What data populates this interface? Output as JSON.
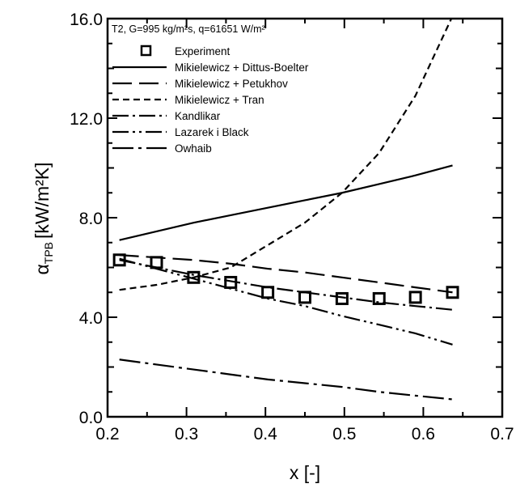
{
  "chart_data": {
    "type": "line",
    "title": "",
    "legend_title": "T2, G=995 kg/m²s, q=61651 W/m²",
    "xlabel": "x [-]",
    "ylabel_main": "α",
    "ylabel_sub": "TPB",
    "ylabel_units": "[kW/m²K]",
    "xlim": [
      0.2,
      0.7
    ],
    "ylim": [
      0.0,
      16.0
    ],
    "x_ticks": [
      "0.2",
      "0.3",
      "0.4",
      "0.5",
      "0.6",
      "0.7"
    ],
    "y_ticks": [
      "0.0",
      "4.0",
      "8.0",
      "12.0",
      "16.0"
    ],
    "grid": false,
    "legend_position": "top-left",
    "series": [
      {
        "name": "Experiment",
        "style": "square-marker",
        "x": [
          0.215,
          0.262,
          0.309,
          0.356,
          0.403,
          0.45,
          0.497,
          0.544,
          0.59,
          0.637
        ],
        "y": [
          6.3,
          6.2,
          5.6,
          5.4,
          5.0,
          4.8,
          4.75,
          4.75,
          4.8,
          5.0
        ]
      },
      {
        "name": "Mikielewicz + Dittus-Boelter",
        "style": "solid",
        "x": [
          0.215,
          0.262,
          0.309,
          0.356,
          0.403,
          0.45,
          0.497,
          0.544,
          0.59,
          0.637
        ],
        "y": [
          7.1,
          7.45,
          7.8,
          8.1,
          8.4,
          8.7,
          9.0,
          9.35,
          9.7,
          10.1
        ]
      },
      {
        "name": "Mikielewicz + Petukhov",
        "style": "long-dash",
        "x": [
          0.215,
          0.262,
          0.309,
          0.356,
          0.403,
          0.45,
          0.497,
          0.544,
          0.59,
          0.637
        ],
        "y": [
          6.5,
          6.4,
          6.3,
          6.15,
          5.95,
          5.8,
          5.6,
          5.4,
          5.2,
          5.0
        ]
      },
      {
        "name": "Mikielewicz + Tran",
        "style": "short-dash",
        "x": [
          0.215,
          0.262,
          0.309,
          0.356,
          0.403,
          0.45,
          0.497,
          0.544,
          0.59,
          0.637
        ],
        "y": [
          5.1,
          5.3,
          5.6,
          6.0,
          6.9,
          7.8,
          9.0,
          10.6,
          12.9,
          16.1
        ]
      },
      {
        "name": "Kandlikar",
        "style": "dash-dot",
        "x": [
          0.215,
          0.262,
          0.309,
          0.356,
          0.403,
          0.45,
          0.497,
          0.544,
          0.59,
          0.637
        ],
        "y": [
          6.3,
          6.0,
          5.7,
          5.45,
          5.2,
          5.0,
          4.8,
          4.6,
          4.45,
          4.3
        ]
      },
      {
        "name": "Lazarek i Black",
        "style": "dash-dot-dot",
        "x": [
          0.215,
          0.262,
          0.309,
          0.356,
          0.403,
          0.45,
          0.497,
          0.544,
          0.59,
          0.637
        ],
        "y": [
          6.35,
          5.95,
          5.55,
          5.15,
          4.75,
          4.45,
          4.05,
          3.7,
          3.35,
          2.9
        ]
      },
      {
        "name": "Owhaib",
        "style": "dash-dot-long",
        "x": [
          0.215,
          0.262,
          0.309,
          0.356,
          0.403,
          0.45,
          0.497,
          0.544,
          0.59,
          0.637
        ],
        "y": [
          2.3,
          2.1,
          1.9,
          1.7,
          1.5,
          1.35,
          1.2,
          1.0,
          0.85,
          0.7
        ]
      }
    ]
  }
}
